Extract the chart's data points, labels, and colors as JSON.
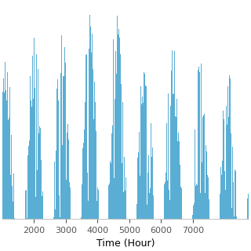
{
  "xlabel": "Time (Hour)",
  "ylabel": "",
  "xlim": [
    1000,
    8760
  ],
  "ylim": [
    0,
    1.0
  ],
  "xticks": [
    2000,
    3000,
    4000,
    5000,
    6000,
    7000
  ],
  "bar_color": "#5aaed4",
  "background_color": "#ffffff",
  "n_hours": 8760,
  "seed": 123,
  "xlabel_fontsize": 9,
  "tick_fontsize": 8,
  "figsize": [
    3.2,
    3.2
  ],
  "dpi": 100
}
